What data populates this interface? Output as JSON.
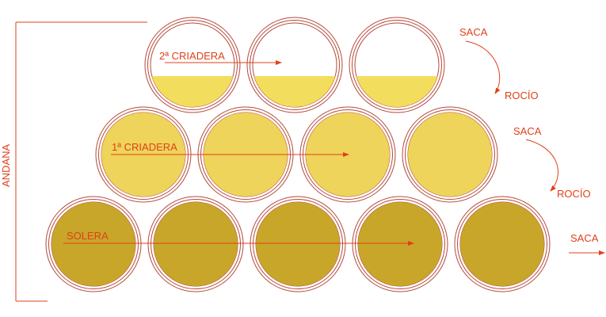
{
  "colors": {
    "accent": "#e0401a",
    "ring": "#b5493a",
    "criadera2_wine": "#f2de5c",
    "criadera1_wine": "#eed45a",
    "solera_wine": "#c8a62a",
    "background": "#ffffff"
  },
  "labels": {
    "andana": "ANDANA",
    "criadera2": "2ª CRIADERA",
    "criadera1": "1ª CRIADERA",
    "solera": "SOLERA",
    "saca_top": "SACA",
    "rocio_top": "ROCÍO",
    "saca_middle": "SACA",
    "rocio_middle": "ROCÍO",
    "saca_bottom": "SACA"
  },
  "tiers": [
    {
      "name": "2ª CRIADERA",
      "barrels": 3,
      "fill": "partial"
    },
    {
      "name": "1ª CRIADERA",
      "barrels": 4,
      "fill": "full"
    },
    {
      "name": "SOLERA",
      "barrels": 5,
      "fill": "full"
    }
  ]
}
